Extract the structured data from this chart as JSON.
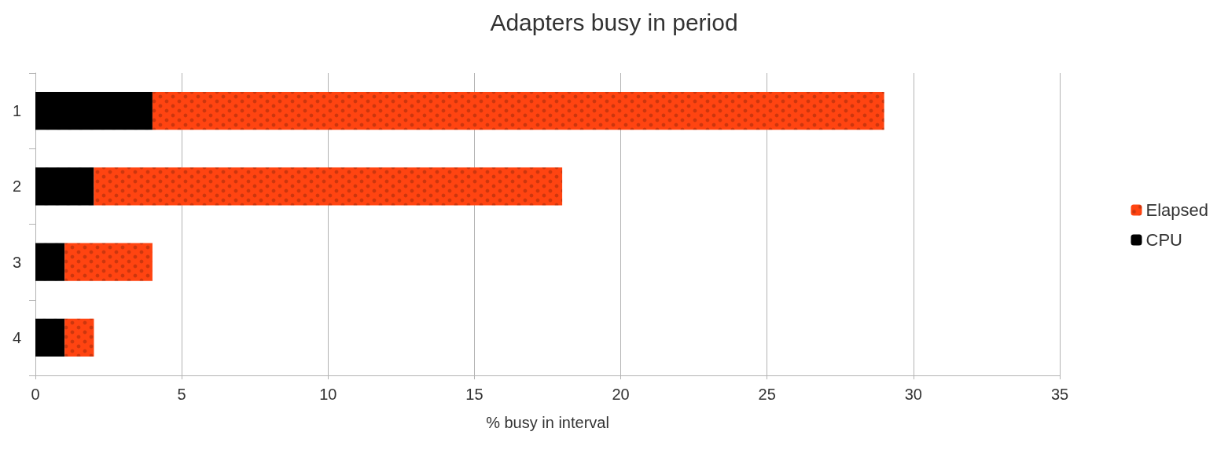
{
  "chart_data": {
    "type": "bar",
    "title": "Adapters busy in period",
    "xlabel": "% busy in interval",
    "orientation": "horizontal",
    "stacked": true,
    "categories": [
      "1",
      "2",
      "3",
      "4"
    ],
    "series": [
      {
        "name": "CPU",
        "color": "#000000",
        "values": [
          4,
          2,
          1,
          1
        ]
      },
      {
        "name": "Elapsed",
        "color": "#ff4411",
        "values": [
          25,
          16,
          3,
          1
        ]
      }
    ],
    "xlim": [
      0,
      35
    ],
    "xticks": [
      0,
      5,
      10,
      15,
      20,
      25,
      30,
      35
    ],
    "grid": "x",
    "legend": "right"
  }
}
